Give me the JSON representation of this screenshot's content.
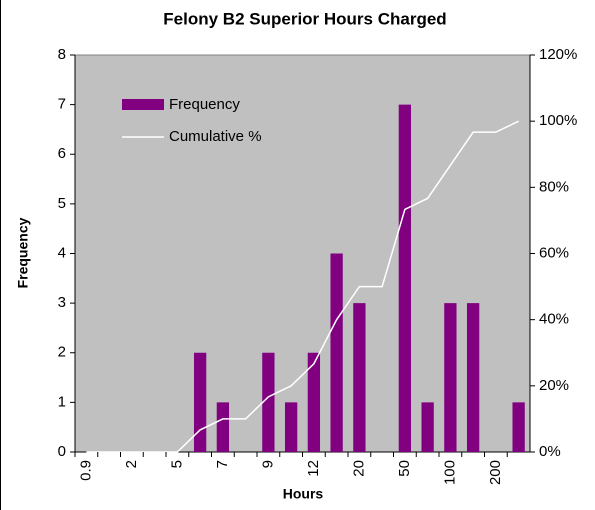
{
  "chart_data": {
    "type": "bar",
    "title": "Felony B2 Superior Hours Charged",
    "x_label": "Hours",
    "y_label": "Frequency",
    "categories": [
      "0.9",
      null,
      "2",
      null,
      "5",
      null,
      "7",
      null,
      "9",
      null,
      "12",
      null,
      "20",
      null,
      "50",
      null,
      "100",
      null,
      "200",
      null
    ],
    "series": [
      {
        "name": "Frequency",
        "color": "#800080",
        "values": [
          0,
          0,
          0,
          0,
          0,
          2,
          1,
          0,
          2,
          1,
          2,
          4,
          3,
          0,
          7,
          1,
          3,
          3,
          0,
          1
        ]
      },
      {
        "name": "Cumulative %",
        "color": "#ffffff",
        "axis": "y2",
        "type": "line",
        "values": [
          0,
          0,
          0,
          0,
          0,
          6.67,
          10,
          10,
          16.67,
          20,
          26.67,
          40,
          50,
          50,
          73.33,
          76.67,
          86.67,
          96.67,
          96.67,
          100
        ]
      }
    ],
    "ylim": [
      0,
      8
    ],
    "yticks": [
      0,
      1,
      2,
      3,
      4,
      5,
      6,
      7,
      8
    ],
    "y2lim": [
      0,
      120
    ],
    "y2ticks": [
      {
        "value": 0,
        "label": "0%"
      },
      {
        "value": 20,
        "label": "20%"
      },
      {
        "value": 40,
        "label": "40%"
      },
      {
        "value": 60,
        "label": "60%"
      },
      {
        "value": 80,
        "label": "80%"
      },
      {
        "value": 100,
        "label": "100%"
      },
      {
        "value": 120,
        "label": "120%"
      }
    ],
    "plot_background": "#c0c0c0",
    "legend": "upper left"
  }
}
